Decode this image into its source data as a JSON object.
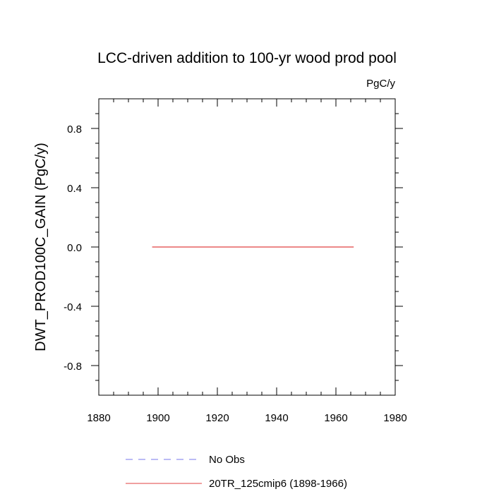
{
  "chart_data": {
    "type": "line",
    "title": "LCC-driven addition to 100-yr wood prod pool",
    "units_label": "PgC/y",
    "ylabel": "DWT_PROD100C_GAIN  (PgC/y)",
    "xlabel": "",
    "xlim": [
      1880,
      1980
    ],
    "ylim": [
      -1.0,
      1.0
    ],
    "x_ticks": [
      1880,
      1900,
      1920,
      1940,
      1960,
      1980
    ],
    "x_tick_labels": [
      "1880",
      "1900",
      "1920",
      "1940",
      "1960",
      "1980"
    ],
    "y_ticks": [
      -0.8,
      -0.4,
      0.0,
      0.4,
      0.8
    ],
    "y_tick_labels": [
      "-0.8",
      "-0.4",
      "0.0",
      "0.4",
      "0.8"
    ],
    "grid": false,
    "legend_position": "bottom",
    "series": [
      {
        "name": "No Obs",
        "color": "#7777ee",
        "dash": "dashed",
        "x": [],
        "y": []
      },
      {
        "name": "20TR_125cmip6 (1898-1966)",
        "color": "#e04040",
        "dash": "solid",
        "x": [
          1898,
          1966
        ],
        "y": [
          0.0,
          0.0
        ]
      }
    ]
  }
}
